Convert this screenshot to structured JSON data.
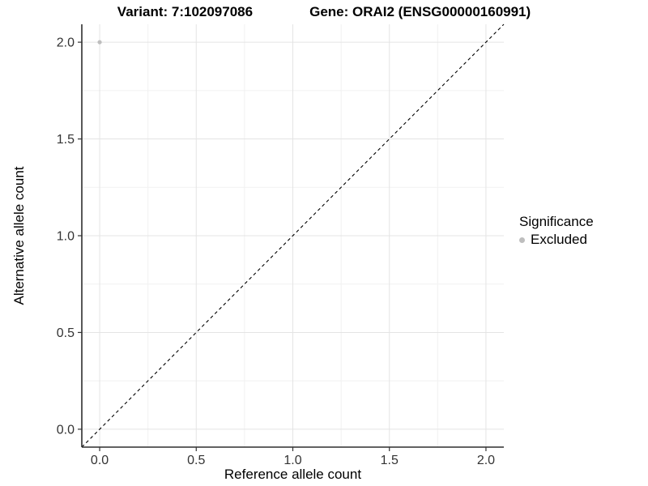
{
  "header": {
    "variant_title": "Variant: 7:102097086",
    "gene_title": "Gene: ORAI2 (ENSG00000160991)"
  },
  "axes": {
    "x_title": "Reference allele count",
    "y_title": "Alternative allele count"
  },
  "legend": {
    "title": "Significance",
    "items": [
      {
        "label": "Excluded",
        "color": "#bebebe"
      }
    ]
  },
  "chart_data": {
    "type": "scatter",
    "title": "Variant: 7:102097086    Gene: ORAI2 (ENSG00000160991)",
    "xlabel": "Reference allele count",
    "ylabel": "Alternative allele count",
    "xlim": [
      -0.0925,
      2.0925
    ],
    "ylim": [
      -0.0925,
      2.0925
    ],
    "x_major_ticks": [
      0,
      0.5,
      1,
      1.5,
      2
    ],
    "y_major_ticks": [
      0,
      0.5,
      1,
      1.5,
      2
    ],
    "x_minor_ticks": [
      0.25,
      0.75,
      1.25,
      1.75
    ],
    "y_minor_ticks": [
      0.25,
      0.75,
      1.25,
      1.75
    ],
    "tick_decimals": 1,
    "grid": "major+minor",
    "legend_position": "right",
    "series": [
      {
        "name": "Excluded",
        "color": "#bebebe",
        "marker": "circle",
        "marker_radius": 2.6,
        "points": [
          [
            0,
            2
          ]
        ]
      }
    ],
    "identity_line": {
      "equation": "y = x",
      "style": "dashed",
      "color": "#000000"
    }
  },
  "style": {
    "background": "#ffffff",
    "grid_major_color": "#e4e4e4",
    "grid_minor_color": "#f1f1f1",
    "axis_line_color": "#2e2e2e",
    "tick_mark_color": "#333333",
    "tick_label_color": "#333333",
    "point_color": "#bebebe"
  }
}
